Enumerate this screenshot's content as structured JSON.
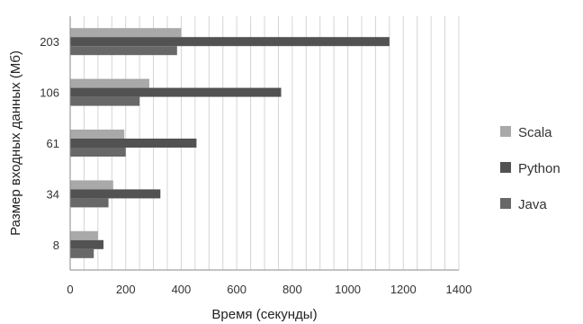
{
  "chart_data": {
    "type": "bar",
    "orientation": "horizontal",
    "categories": [
      "8",
      "34",
      "61",
      "106",
      "203"
    ],
    "series": [
      {
        "name": "Scala",
        "values": [
          100,
          155,
          195,
          285,
          400
        ],
        "color": "#a9a9a9"
      },
      {
        "name": "Python",
        "values": [
          120,
          325,
          455,
          760,
          1150
        ],
        "color": "#525252"
      },
      {
        "name": "Java",
        "values": [
          85,
          138,
          200,
          250,
          385
        ],
        "color": "#686868"
      }
    ],
    "title": "",
    "xlabel": "Время (секунды)",
    "ylabel": "Размер входных данных (Мб)",
    "xlim": [
      0,
      1400
    ],
    "xticks": [
      0,
      200,
      400,
      600,
      800,
      1000,
      1200,
      1400
    ],
    "grid": "vertical",
    "legend": "right"
  }
}
